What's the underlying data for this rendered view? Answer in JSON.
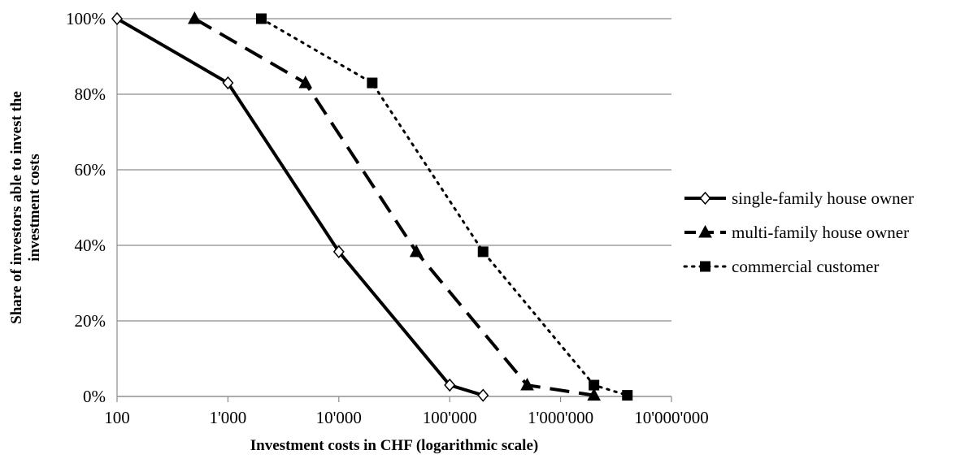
{
  "chart_data": {
    "type": "line",
    "title": "",
    "xlabel": "Investment costs in CHF (logarithmic scale)",
    "ylabel_lines": [
      "Share of investors able to invest the",
      "investment costs"
    ],
    "x_scale": "log",
    "xlim": [
      100,
      10000000
    ],
    "ylim": [
      0,
      100
    ],
    "x_ticks": [
      100,
      1000,
      10000,
      100000,
      1000000,
      10000000
    ],
    "x_tick_labels": [
      "100",
      "1'000",
      "10'000",
      "100'000",
      "1'000'000",
      "10'000'000"
    ],
    "y_ticks": [
      0,
      20,
      40,
      60,
      80,
      100
    ],
    "y_tick_labels": [
      "0%",
      "20%",
      "40%",
      "60%",
      "80%",
      "100%"
    ],
    "grid": "horizontal",
    "legend_position": "right",
    "series": [
      {
        "name": "single-family house owner",
        "color": "#000000",
        "line_style": "solid",
        "marker": "diamond-open",
        "x": [
          100,
          1000,
          10000,
          100000,
          200000
        ],
        "y": [
          100,
          83,
          38.3,
          3,
          0.3
        ]
      },
      {
        "name": "multi-family house owner",
        "color": "#000000",
        "line_style": "dashed",
        "marker": "triangle",
        "x": [
          500,
          5000,
          50000,
          500000,
          2000000
        ],
        "y": [
          100,
          83,
          38.3,
          3,
          0.3
        ]
      },
      {
        "name": "commercial customer",
        "color": "#000000",
        "line_style": "dotted",
        "marker": "square",
        "x": [
          2000,
          20000,
          200000,
          2000000,
          4000000
        ],
        "y": [
          100,
          83,
          38.3,
          3,
          0.3
        ]
      }
    ]
  }
}
